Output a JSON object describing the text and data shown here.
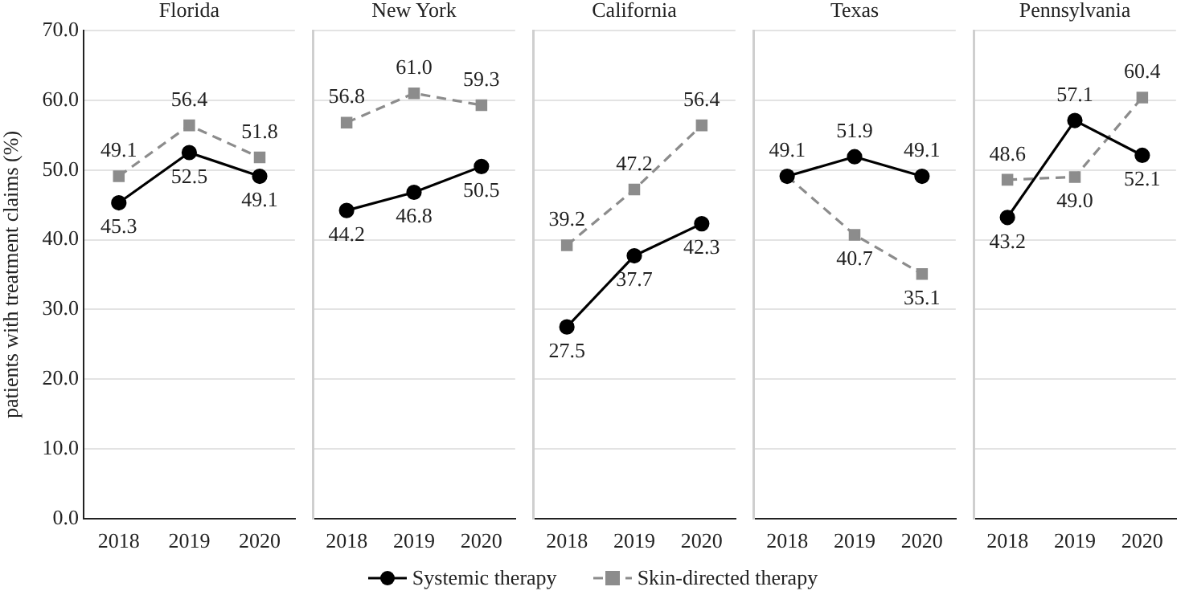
{
  "chart_data": [
    {
      "type": "line",
      "title": "Florida",
      "ylabel": "patients with treatment claims (%)",
      "categories": [
        "2018",
        "2019",
        "2020"
      ],
      "ylim": [
        0,
        70
      ],
      "yticks": [
        {
          "value": 0,
          "label": "0.0"
        },
        {
          "value": 10,
          "label": "10.0"
        },
        {
          "value": 20,
          "label": "20.0"
        },
        {
          "value": 30,
          "label": "30.0"
        },
        {
          "value": 40,
          "label": "40.0"
        },
        {
          "value": 50,
          "label": "50.0"
        },
        {
          "value": 60,
          "label": "60.0"
        },
        {
          "value": 70,
          "label": "70.0"
        }
      ],
      "grid": "y",
      "legend": "bottom",
      "data_labels": true,
      "series": [
        {
          "name": "Systemic therapy",
          "color": "#000000",
          "marker": "circle",
          "line_style": "solid",
          "values": [
            45.3,
            52.5,
            49.1
          ]
        },
        {
          "name": "Skin-directed therapy",
          "color": "#8c8c8c",
          "marker": "square",
          "line_style": "dashed",
          "values": [
            49.1,
            56.4,
            51.8
          ]
        }
      ]
    },
    {
      "type": "line",
      "title": "New York",
      "categories": [
        "2018",
        "2019",
        "2020"
      ],
      "ylim": [
        0,
        70
      ],
      "yticks": [
        0,
        10,
        20,
        30,
        40,
        50,
        60,
        70
      ],
      "tick_labels": "x",
      "grid": "y",
      "data_labels": true,
      "series": [
        {
          "color": "#000000",
          "marker": "circle",
          "line_style": "solid",
          "values": [
            44.2,
            46.8,
            50.5
          ]
        },
        {
          "color": "#8c8c8c",
          "marker": "square",
          "line_style": "dashed",
          "values": [
            56.8,
            61.0,
            59.3
          ],
          "value_labels": [
            "56.8",
            "61.0",
            "59.3"
          ]
        }
      ]
    },
    {
      "type": "line",
      "title": "California",
      "categories": [
        "2018",
        "2019",
        "2020"
      ],
      "ylim": [
        0,
        70
      ],
      "yticks": [
        0,
        10,
        20,
        30,
        40,
        50,
        60,
        70
      ],
      "tick_labels": "x",
      "grid": "y",
      "data_labels": true,
      "series": [
        {
          "color": "#000000",
          "marker": "circle",
          "line_style": "solid",
          "values": [
            27.5,
            37.7,
            42.3
          ]
        },
        {
          "color": "#8c8c8c",
          "marker": "square",
          "line_style": "dashed",
          "values": [
            39.2,
            47.2,
            56.4
          ]
        }
      ]
    },
    {
      "type": "line",
      "title": "Texas",
      "categories": [
        "2018",
        "2019",
        "2020"
      ],
      "ylim": [
        0,
        70
      ],
      "yticks": [
        0,
        10,
        20,
        30,
        40,
        50,
        60,
        70
      ],
      "tick_labels": "x",
      "grid": "y",
      "series": [
        {
          "color": "#000000",
          "marker": "circle",
          "line_style": "solid",
          "values": [
            49.1,
            51.9,
            49.1
          ],
          "value_labels": [
            null,
            "51.9",
            "49.1"
          ]
        },
        {
          "color": "#8c8c8c",
          "marker": "square",
          "line_style": "dashed",
          "values": [
            49.1,
            40.7,
            35.1
          ],
          "value_labels": [
            "49.1",
            "40.7",
            "35.1"
          ]
        }
      ]
    },
    {
      "type": "line",
      "title": "Pennsylvania",
      "categories": [
        "2018",
        "2019",
        "2020"
      ],
      "ylim": [
        0,
        70
      ],
      "yticks": [
        0,
        10,
        20,
        30,
        40,
        50,
        60,
        70
      ],
      "tick_labels": "x",
      "grid": "y",
      "data_labels": true,
      "series": [
        {
          "color": "#000000",
          "marker": "circle",
          "line_style": "solid",
          "values": [
            43.2,
            57.1,
            52.1
          ]
        },
        {
          "color": "#8c8c8c",
          "marker": "square",
          "line_style": "dashed",
          "values": [
            48.6,
            49.0,
            60.4
          ],
          "value_labels": [
            "48.6",
            "49.0",
            "60.4"
          ]
        }
      ]
    }
  ]
}
